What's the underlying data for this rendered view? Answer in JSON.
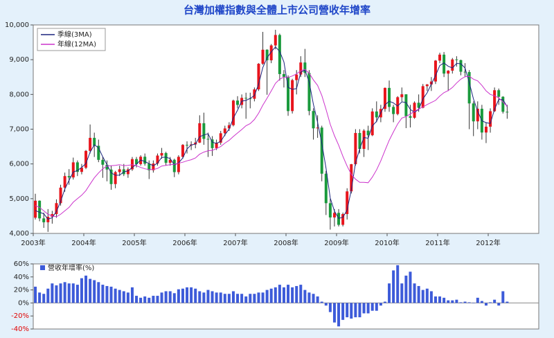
{
  "chart_data": [
    {
      "type": "candlestick",
      "title": "台灣加權指數與全體上市公司營收年增率",
      "x": [
        "2003-01",
        "2003-02",
        "2003-03",
        "2003-04",
        "2003-05",
        "2003-06",
        "2003-07",
        "2003-08",
        "2003-09",
        "2003-10",
        "2003-11",
        "2003-12",
        "2004-01",
        "2004-02",
        "2004-03",
        "2004-04",
        "2004-05",
        "2004-06",
        "2004-07",
        "2004-08",
        "2004-09",
        "2004-10",
        "2004-11",
        "2004-12",
        "2005-01",
        "2005-02",
        "2005-03",
        "2005-04",
        "2005-05",
        "2005-06",
        "2005-07",
        "2005-08",
        "2005-09",
        "2005-10",
        "2005-11",
        "2005-12",
        "2006-01",
        "2006-02",
        "2006-03",
        "2006-04",
        "2006-05",
        "2006-06",
        "2006-07",
        "2006-08",
        "2006-09",
        "2006-10",
        "2006-11",
        "2006-12",
        "2007-01",
        "2007-02",
        "2007-03",
        "2007-04",
        "2007-05",
        "2007-06",
        "2007-07",
        "2007-08",
        "2007-09",
        "2007-10",
        "2007-11",
        "2007-12",
        "2008-01",
        "2008-02",
        "2008-03",
        "2008-04",
        "2008-05",
        "2008-06",
        "2008-07",
        "2008-08",
        "2008-09",
        "2008-10",
        "2008-11",
        "2008-12",
        "2009-01",
        "2009-02",
        "2009-03",
        "2009-04",
        "2009-05",
        "2009-06",
        "2009-07",
        "2009-08",
        "2009-09",
        "2009-10",
        "2009-11",
        "2009-12",
        "2010-01",
        "2010-02",
        "2010-03",
        "2010-04",
        "2010-05",
        "2010-06",
        "2010-07",
        "2010-08",
        "2010-09",
        "2010-10",
        "2010-11",
        "2010-12",
        "2011-01",
        "2011-02",
        "2011-03",
        "2011-04",
        "2011-05",
        "2011-06",
        "2011-07",
        "2011-08",
        "2011-09",
        "2011-10",
        "2011-11",
        "2011-12",
        "2012-01",
        "2012-02",
        "2012-03",
        "2012-04",
        "2012-05"
      ],
      "open": [
        4452,
        4941,
        4432,
        4321,
        4480,
        4556,
        4872,
        5318,
        5650,
        5611,
        6045,
        5771,
        5890,
        6375,
        6750,
        6522,
        6117,
        5977,
        5839,
        5420,
        5765,
        5845,
        5705,
        5844,
        6139,
        5994,
        6207,
        6006,
        5818,
        6011,
        6241,
        6312,
        6033,
        6118,
        5764,
        6204,
        6548,
        6532,
        6561,
        6614,
        7171,
        6721,
        6705,
        6455,
        6611,
        6883,
        7021,
        7115,
        7823,
        7699,
        7901,
        7884,
        7875,
        8145,
        8883,
        9287,
        8982,
        9411,
        9711,
        8586,
        8506,
        7521,
        8412,
        8572,
        8919,
        8619,
        7523,
        7024,
        7046,
        5719,
        4870,
        4460,
        4591,
        4248,
        4557,
        5210,
        5992,
        6890,
        6432,
        6958,
        6826,
        7509,
        7340,
        7582,
        8188,
        7640,
        7436,
        7920,
        8004,
        7374,
        7329,
        7761,
        7616,
        8238,
        8287,
        8372,
        8973,
        9145,
        8600,
        8683,
        9007,
        8988,
        8653,
        8644,
        7741,
        7225,
        7588,
        6904,
        7072,
        7517,
        8121,
        7933,
        7501
      ],
      "high": [
        5141,
        4950,
        4600,
        4700,
        4650,
        4980,
        5400,
        5750,
        5850,
        6182,
        6100,
        6000,
        6400,
        7135,
        6900,
        6700,
        6200,
        6100,
        5950,
        5800,
        5950,
        6000,
        5900,
        6200,
        6200,
        6250,
        6300,
        6100,
        6100,
        6300,
        6460,
        6350,
        6200,
        6150,
        6250,
        6570,
        6650,
        6650,
        6750,
        7400,
        7475,
        6900,
        6800,
        6700,
        6950,
        7100,
        7200,
        7850,
        7950,
        8000,
        8050,
        8050,
        8200,
        8900,
        9800,
        9300,
        9450,
        9860,
        9750,
        8700,
        8550,
        8450,
        8700,
        9100,
        9310,
        8700,
        7600,
        7400,
        7100,
        5800,
        5000,
        4700,
        4700,
        4600,
        5300,
        6000,
        7000,
        7000,
        7000,
        7100,
        7600,
        7800,
        7700,
        8200,
        8400,
        7700,
        7950,
        8200,
        8000,
        7700,
        7800,
        8000,
        8300,
        8300,
        8500,
        8990,
        9200,
        9220,
        8700,
        9050,
        9100,
        9000,
        8900,
        8700,
        7800,
        7800,
        7700,
        7200,
        7600,
        8200,
        8170,
        7950,
        7700
      ],
      "low": [
        4400,
        4350,
        4160,
        4044,
        4280,
        4450,
        4800,
        5200,
        5400,
        5550,
        5650,
        5700,
        5850,
        6300,
        6200,
        6050,
        5600,
        5500,
        5255,
        5300,
        5650,
        5650,
        5600,
        5800,
        5900,
        5950,
        5950,
        5565,
        5750,
        5950,
        6150,
        5950,
        5950,
        5620,
        5700,
        6150,
        6300,
        6400,
        6450,
        6600,
        6550,
        6200,
        6230,
        6400,
        6550,
        6800,
        6950,
        7080,
        7600,
        7600,
        7300,
        7600,
        7800,
        8100,
        8850,
        7990,
        8900,
        9300,
        8400,
        8200,
        7384,
        7450,
        8000,
        8500,
        8500,
        7400,
        6700,
        6750,
        5500,
        4530,
        4110,
        4200,
        4200,
        4200,
        4400,
        5150,
        5950,
        6300,
        6200,
        6400,
        6800,
        7200,
        7200,
        7500,
        7500,
        7200,
        7400,
        7800,
        7030,
        7050,
        7300,
        7500,
        7600,
        8100,
        8100,
        8300,
        8900,
        8500,
        8100,
        8600,
        8800,
        8550,
        8500,
        7000,
        6800,
        7000,
        6700,
        6600,
        6900,
        7500,
        7700,
        7450,
        7300
      ],
      "close": [
        4941,
        4432,
        4321,
        4480,
        4556,
        4872,
        5318,
        5650,
        5611,
        6045,
        5771,
        5890,
        6375,
        6750,
        6522,
        6117,
        5977,
        5839,
        5420,
        5765,
        5845,
        5705,
        5844,
        6139,
        5994,
        6207,
        6006,
        5818,
        6011,
        6241,
        6312,
        6033,
        6118,
        5764,
        6204,
        6548,
        6532,
        6561,
        6614,
        7171,
        6721,
        6705,
        6455,
        6611,
        6883,
        7021,
        7115,
        7823,
        7699,
        7901,
        7884,
        7875,
        8145,
        8883,
        9287,
        8982,
        9411,
        9711,
        8586,
        8506,
        7521,
        8412,
        8572,
        8919,
        8619,
        7523,
        7024,
        7046,
        5719,
        4870,
        4460,
        4591,
        4248,
        4557,
        5210,
        5992,
        6890,
        6432,
        6958,
        6826,
        7509,
        7340,
        7582,
        8188,
        7640,
        7436,
        7920,
        8004,
        7374,
        7329,
        7761,
        7616,
        8238,
        8287,
        8372,
        8973,
        9145,
        8600,
        8683,
        9007,
        8988,
        8653,
        8644,
        7741,
        7225,
        7588,
        6904,
        7072,
        7517,
        8121,
        7933,
        7501,
        7500
      ],
      "up_color": "#e8141c",
      "down_color": "#1a9a3c",
      "series": [
        {
          "name": "季線(3MA)",
          "color": "#1a237e",
          "values": [
            4660,
            4608,
            4565,
            4411,
            4452,
            4636,
            4915,
            5280,
            5526,
            5769,
            5809,
            5902,
            6012,
            6338,
            6549,
            6463,
            6205,
            5978,
            5745,
            5675,
            5677,
            5772,
            5798,
            5896,
            5992,
            6113,
            6069,
            6010,
            5945,
            6023,
            6188,
            6195,
            6154,
            5972,
            6029,
            6172,
            6428,
            6547,
            6569,
            6782,
            6835,
            6866,
            6627,
            6590,
            6650,
            6838,
            7006,
            7320,
            7546,
            7808,
            7828,
            7887,
            7968,
            8301,
            8772,
            9051,
            9227,
            9368,
            9236,
            8934,
            8204,
            8146,
            8168,
            8634,
            8703,
            8354,
            7722,
            7198,
            6596,
            5878,
            5016,
            4640,
            4433,
            4465,
            4672,
            5253,
            6031,
            6438,
            6760,
            6739,
            7098,
            7225,
            7477,
            7703,
            7803,
            7755,
            7665,
            7787,
            7766,
            7569,
            7488,
            7569,
            7872,
            8047,
            8299,
            8544,
            8830,
            8906,
            8809,
            8763,
            8893,
            8883,
            8762,
            8346,
            7870,
            7518,
            7239,
            7188,
            7164,
            7570,
            7857,
            7852,
            7645
          ]
        },
        {
          "name": "年線(12MA)",
          "color": "#cc33cc",
          "values": [
            4800,
            4750,
            4650,
            4550,
            4500,
            4480,
            4550,
            4650,
            4750,
            4900,
            5000,
            5100,
            5230,
            5420,
            5600,
            5740,
            5860,
            5940,
            5950,
            5960,
            5980,
            5950,
            5960,
            5980,
            5950,
            5900,
            5860,
            5840,
            5840,
            5870,
            5940,
            5960,
            5980,
            5990,
            6020,
            6050,
            6090,
            6120,
            6170,
            6280,
            6340,
            6380,
            6390,
            6440,
            6500,
            6600,
            6680,
            6790,
            6890,
            6990,
            7100,
            7160,
            7280,
            7460,
            7690,
            7890,
            8100,
            8320,
            8440,
            8500,
            8490,
            8530,
            8590,
            8680,
            8720,
            8610,
            8420,
            8260,
            7970,
            7570,
            7140,
            6810,
            6540,
            6220,
            5940,
            5700,
            5560,
            5470,
            5470,
            5460,
            5620,
            5830,
            6090,
            6390,
            6680,
            6920,
            7150,
            7320,
            7360,
            7440,
            7510,
            7580,
            7640,
            7710,
            7770,
            7830,
            7950,
            8050,
            8110,
            8200,
            8330,
            8440,
            8510,
            8520,
            8440,
            8390,
            8260,
            8100,
            8000,
            7960,
            7900,
            7780,
            7660
          ]
        }
      ],
      "xlim": [
        2003,
        2013
      ],
      "xticks": [
        {
          "value": 2003,
          "label": "2003年"
        },
        {
          "value": 2004,
          "label": "2004年"
        },
        {
          "value": 2005,
          "label": "2005年"
        },
        {
          "value": 2006,
          "label": "2006年"
        },
        {
          "value": 2007,
          "label": "2007年"
        },
        {
          "value": 2008,
          "label": "2008年"
        },
        {
          "value": 2009,
          "label": "2009年"
        },
        {
          "value": 2010,
          "label": "2010年"
        },
        {
          "value": 2011,
          "label": "2011年"
        },
        {
          "value": 2012,
          "label": "2012年"
        }
      ],
      "ylim": [
        4000,
        10000
      ],
      "yticks": [
        {
          "value": 4000,
          "label": "4,000"
        },
        {
          "value": 5000,
          "label": "5,000"
        },
        {
          "value": 6000,
          "label": "6,000"
        },
        {
          "value": 7000,
          "label": "7,000"
        },
        {
          "value": 8000,
          "label": "8,000"
        },
        {
          "value": 9000,
          "label": "9,000"
        },
        {
          "value": 10000,
          "label": "10,000"
        }
      ],
      "legend": "top-left"
    },
    {
      "type": "bar",
      "x": [
        "2003-01",
        "2003-02",
        "2003-03",
        "2003-04",
        "2003-05",
        "2003-06",
        "2003-07",
        "2003-08",
        "2003-09",
        "2003-10",
        "2003-11",
        "2003-12",
        "2004-01",
        "2004-02",
        "2004-03",
        "2004-04",
        "2004-05",
        "2004-06",
        "2004-07",
        "2004-08",
        "2004-09",
        "2004-10",
        "2004-11",
        "2004-12",
        "2005-01",
        "2005-02",
        "2005-03",
        "2005-04",
        "2005-05",
        "2005-06",
        "2005-07",
        "2005-08",
        "2005-09",
        "2005-10",
        "2005-11",
        "2005-12",
        "2006-01",
        "2006-02",
        "2006-03",
        "2006-04",
        "2006-05",
        "2006-06",
        "2006-07",
        "2006-08",
        "2006-09",
        "2006-10",
        "2006-11",
        "2006-12",
        "2007-01",
        "2007-02",
        "2007-03",
        "2007-04",
        "2007-05",
        "2007-06",
        "2007-07",
        "2007-08",
        "2007-09",
        "2007-10",
        "2007-11",
        "2007-12",
        "2008-01",
        "2008-02",
        "2008-03",
        "2008-04",
        "2008-05",
        "2008-06",
        "2008-07",
        "2008-08",
        "2008-09",
        "2008-10",
        "2008-11",
        "2008-12",
        "2009-01",
        "2009-02",
        "2009-03",
        "2009-04",
        "2009-05",
        "2009-06",
        "2009-07",
        "2009-08",
        "2009-09",
        "2009-10",
        "2009-11",
        "2009-12",
        "2010-01",
        "2010-02",
        "2010-03",
        "2010-04",
        "2010-05",
        "2010-06",
        "2010-07",
        "2010-08",
        "2010-09",
        "2010-10",
        "2010-11",
        "2010-12",
        "2011-01",
        "2011-02",
        "2011-03",
        "2011-04",
        "2011-05",
        "2011-06",
        "2011-07",
        "2011-08",
        "2011-09",
        "2011-10",
        "2011-11",
        "2011-12",
        "2012-01",
        "2012-02",
        "2012-03",
        "2012-04",
        "2012-05"
      ],
      "series": [
        {
          "name": "營收年增率(%)",
          "color": "#3d5bd9",
          "values": [
            25,
            16,
            14,
            22,
            30,
            27,
            30,
            32,
            30,
            30,
            28,
            38,
            42,
            37,
            35,
            32,
            28,
            26,
            25,
            22,
            20,
            18,
            16,
            24,
            11,
            8,
            10,
            8,
            11,
            11,
            16,
            18,
            18,
            15,
            21,
            22,
            24,
            24,
            22,
            18,
            16,
            20,
            18,
            16,
            16,
            14,
            14,
            18,
            14,
            14,
            10,
            14,
            14,
            16,
            16,
            20,
            22,
            24,
            28,
            24,
            28,
            24,
            26,
            28,
            20,
            16,
            14,
            10,
            2,
            -4,
            -14,
            -30,
            -36,
            -26,
            -22,
            -24,
            -22,
            -22,
            -16,
            -16,
            -12,
            -12,
            -4,
            2,
            30,
            50,
            58,
            30,
            42,
            48,
            30,
            26,
            20,
            22,
            18,
            10,
            10,
            8,
            4,
            4,
            5,
            1,
            2,
            1,
            0,
            8,
            3,
            -4,
            1,
            5,
            -4,
            18,
            2
          ]
        }
      ],
      "xlim": [
        2003,
        2013
      ],
      "ylim": [
        -40,
        60
      ],
      "yticks": [
        {
          "value": -40,
          "label": "-40%"
        },
        {
          "value": -20,
          "label": "-20%"
        },
        {
          "value": 0,
          "label": "0%"
        },
        {
          "value": 20,
          "label": "20%"
        },
        {
          "value": 40,
          "label": "40%"
        },
        {
          "value": 60,
          "label": "60%"
        }
      ],
      "negative_tick_color": "#e00000",
      "legend": "top-left"
    }
  ]
}
